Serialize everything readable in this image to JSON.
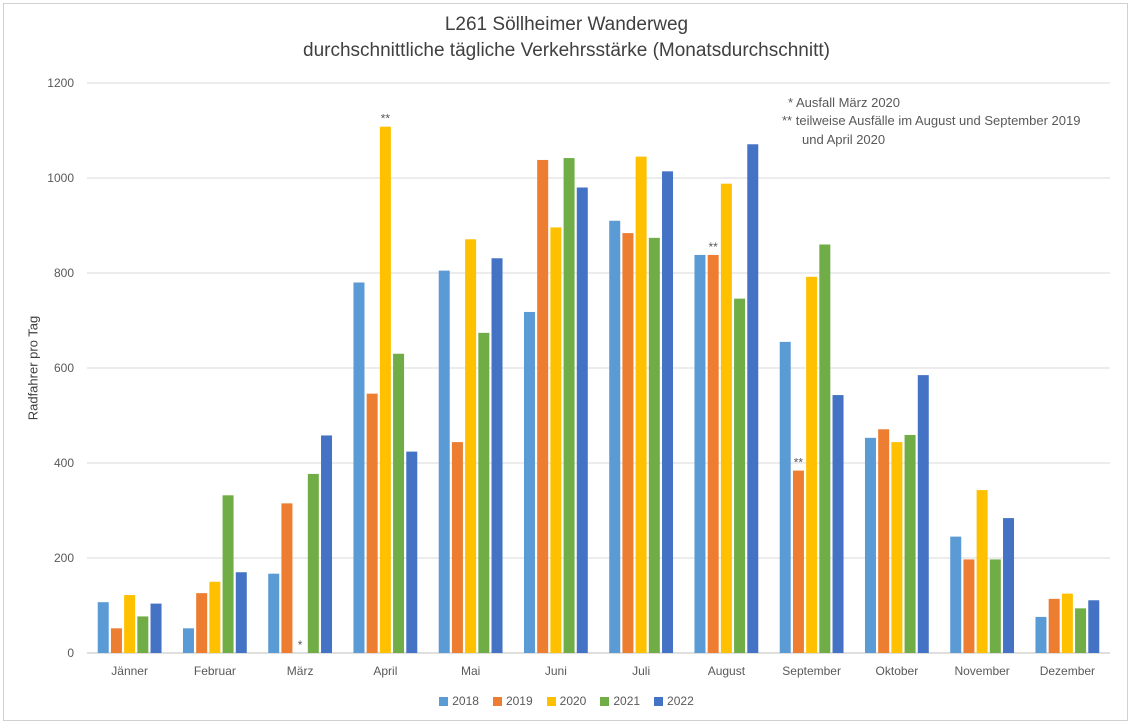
{
  "chart_data": {
    "type": "bar",
    "title": "L261 Söllheimer Wanderweg",
    "subtitle": "durchschnittliche tägliche Verkehrsstärke (Monatsdurchschnitt)",
    "xlabel": "",
    "ylabel": "Radfahrer pro Tag",
    "ylim": [
      0,
      1200
    ],
    "yticks": [
      0,
      200,
      400,
      600,
      800,
      1000,
      1200
    ],
    "grid": true,
    "legend_position": "bottom",
    "categories": [
      "Jänner",
      "Februar",
      "März",
      "April",
      "Mai",
      "Juni",
      "Juli",
      "August",
      "September",
      "Oktober",
      "November",
      "Dezember"
    ],
    "series": [
      {
        "name": "2018",
        "color": "#5B9BD5",
        "values": [
          107,
          52,
          167,
          780,
          805,
          718,
          910,
          838,
          655,
          453,
          245,
          76
        ]
      },
      {
        "name": "2019",
        "color": "#ED7D31",
        "values": [
          52,
          126,
          315,
          546,
          444,
          1038,
          884,
          838,
          384,
          471,
          197,
          114
        ]
      },
      {
        "name": "2020",
        "color": "#FFC000",
        "values": [
          122,
          150,
          0,
          1108,
          871,
          896,
          1045,
          988,
          792,
          444,
          343,
          125
        ]
      },
      {
        "name": "2021",
        "color": "#70AD47",
        "values": [
          77,
          332,
          377,
          630,
          674,
          1042,
          874,
          746,
          860,
          459,
          197,
          94
        ]
      },
      {
        "name": "2022",
        "color": "#4472C4",
        "values": [
          104,
          170,
          458,
          424,
          831,
          980,
          1014,
          1071,
          543,
          585,
          284,
          111
        ]
      }
    ],
    "annotations": [
      {
        "text": "*",
        "category": "März",
        "series": "2020",
        "value": 0
      },
      {
        "text": "**",
        "category": "April",
        "series": "2020",
        "value": 1108
      },
      {
        "text": "**",
        "category": "August",
        "series": "2019",
        "value": 838
      },
      {
        "text": "**",
        "category": "September",
        "series": "2019",
        "value": 384
      }
    ],
    "notes": [
      "* Ausfall März 2020",
      "** teilweise Ausfälle im August und September 2019",
      "und April 2020"
    ]
  }
}
